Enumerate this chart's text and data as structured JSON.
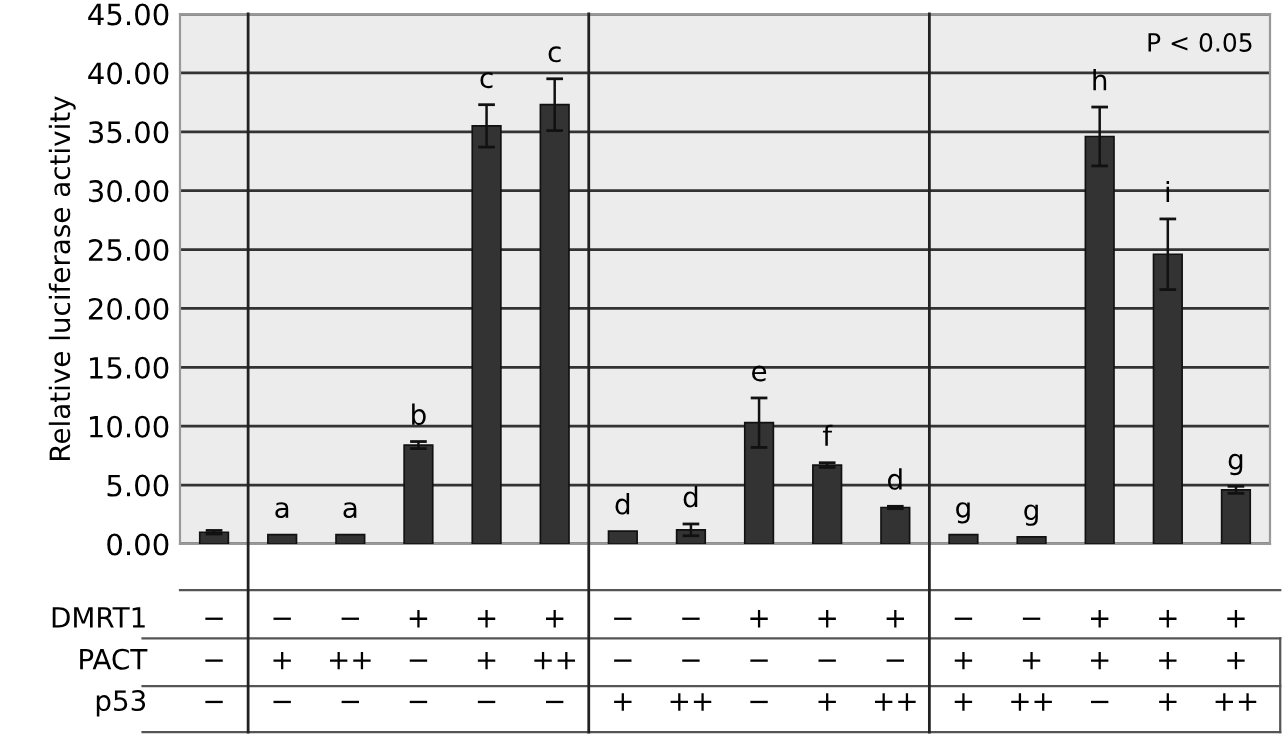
{
  "chart_data": {
    "type": "bar",
    "ylabel": "Relative luciferase activity",
    "categories": [
      "−\n−\n−",
      "−\n+\n−",
      "−\n++\n−",
      "+\n−\n−",
      "+\n+\n−",
      "+\n++\n−",
      "−\n−\n+",
      "−\n−\n++",
      "+\n−\n−",
      "+\n−\n+",
      "+\n−\n++",
      "−\n+\n+",
      "−\n+\n++",
      "+\n+\n−",
      "+\n+\n+",
      "+\n+\n++"
    ],
    "values": [
      1.0,
      0.8,
      0.8,
      8.4,
      35.5,
      37.3,
      1.1,
      1.2,
      10.3,
      6.7,
      3.1,
      0.8,
      0.6,
      34.6,
      24.6,
      4.6
    ],
    "errors": [
      0.15,
      null,
      null,
      0.3,
      1.8,
      2.2,
      null,
      0.5,
      2.1,
      0.2,
      0.1,
      null,
      null,
      2.5,
      3.0,
      0.3
    ],
    "value_labels": [
      null,
      "a",
      "a",
      "b",
      "c",
      "c",
      "d",
      "d",
      "e",
      "f",
      "d",
      "g",
      "g",
      "h",
      "i",
      "g"
    ],
    "color": "#333333",
    "ylim": [
      0,
      45
    ],
    "yticks": [
      {
        "value": 0,
        "label": "0.00"
      },
      {
        "value": 5,
        "label": "5.00"
      },
      {
        "value": 10,
        "label": "10.00"
      },
      {
        "value": 15,
        "label": "15.00"
      },
      {
        "value": 20,
        "label": "20.00"
      },
      {
        "value": 25,
        "label": "25.00"
      },
      {
        "value": 30,
        "label": "30.00"
      },
      {
        "value": 35,
        "label": "35.00"
      },
      {
        "value": 40,
        "label": "40.00"
      },
      {
        "value": 45,
        "label": "45.00"
      }
    ],
    "grid": "y",
    "annotations": [
      "P < 0.05",
      "DMRT1",
      "PACT",
      "p53"
    ]
  }
}
